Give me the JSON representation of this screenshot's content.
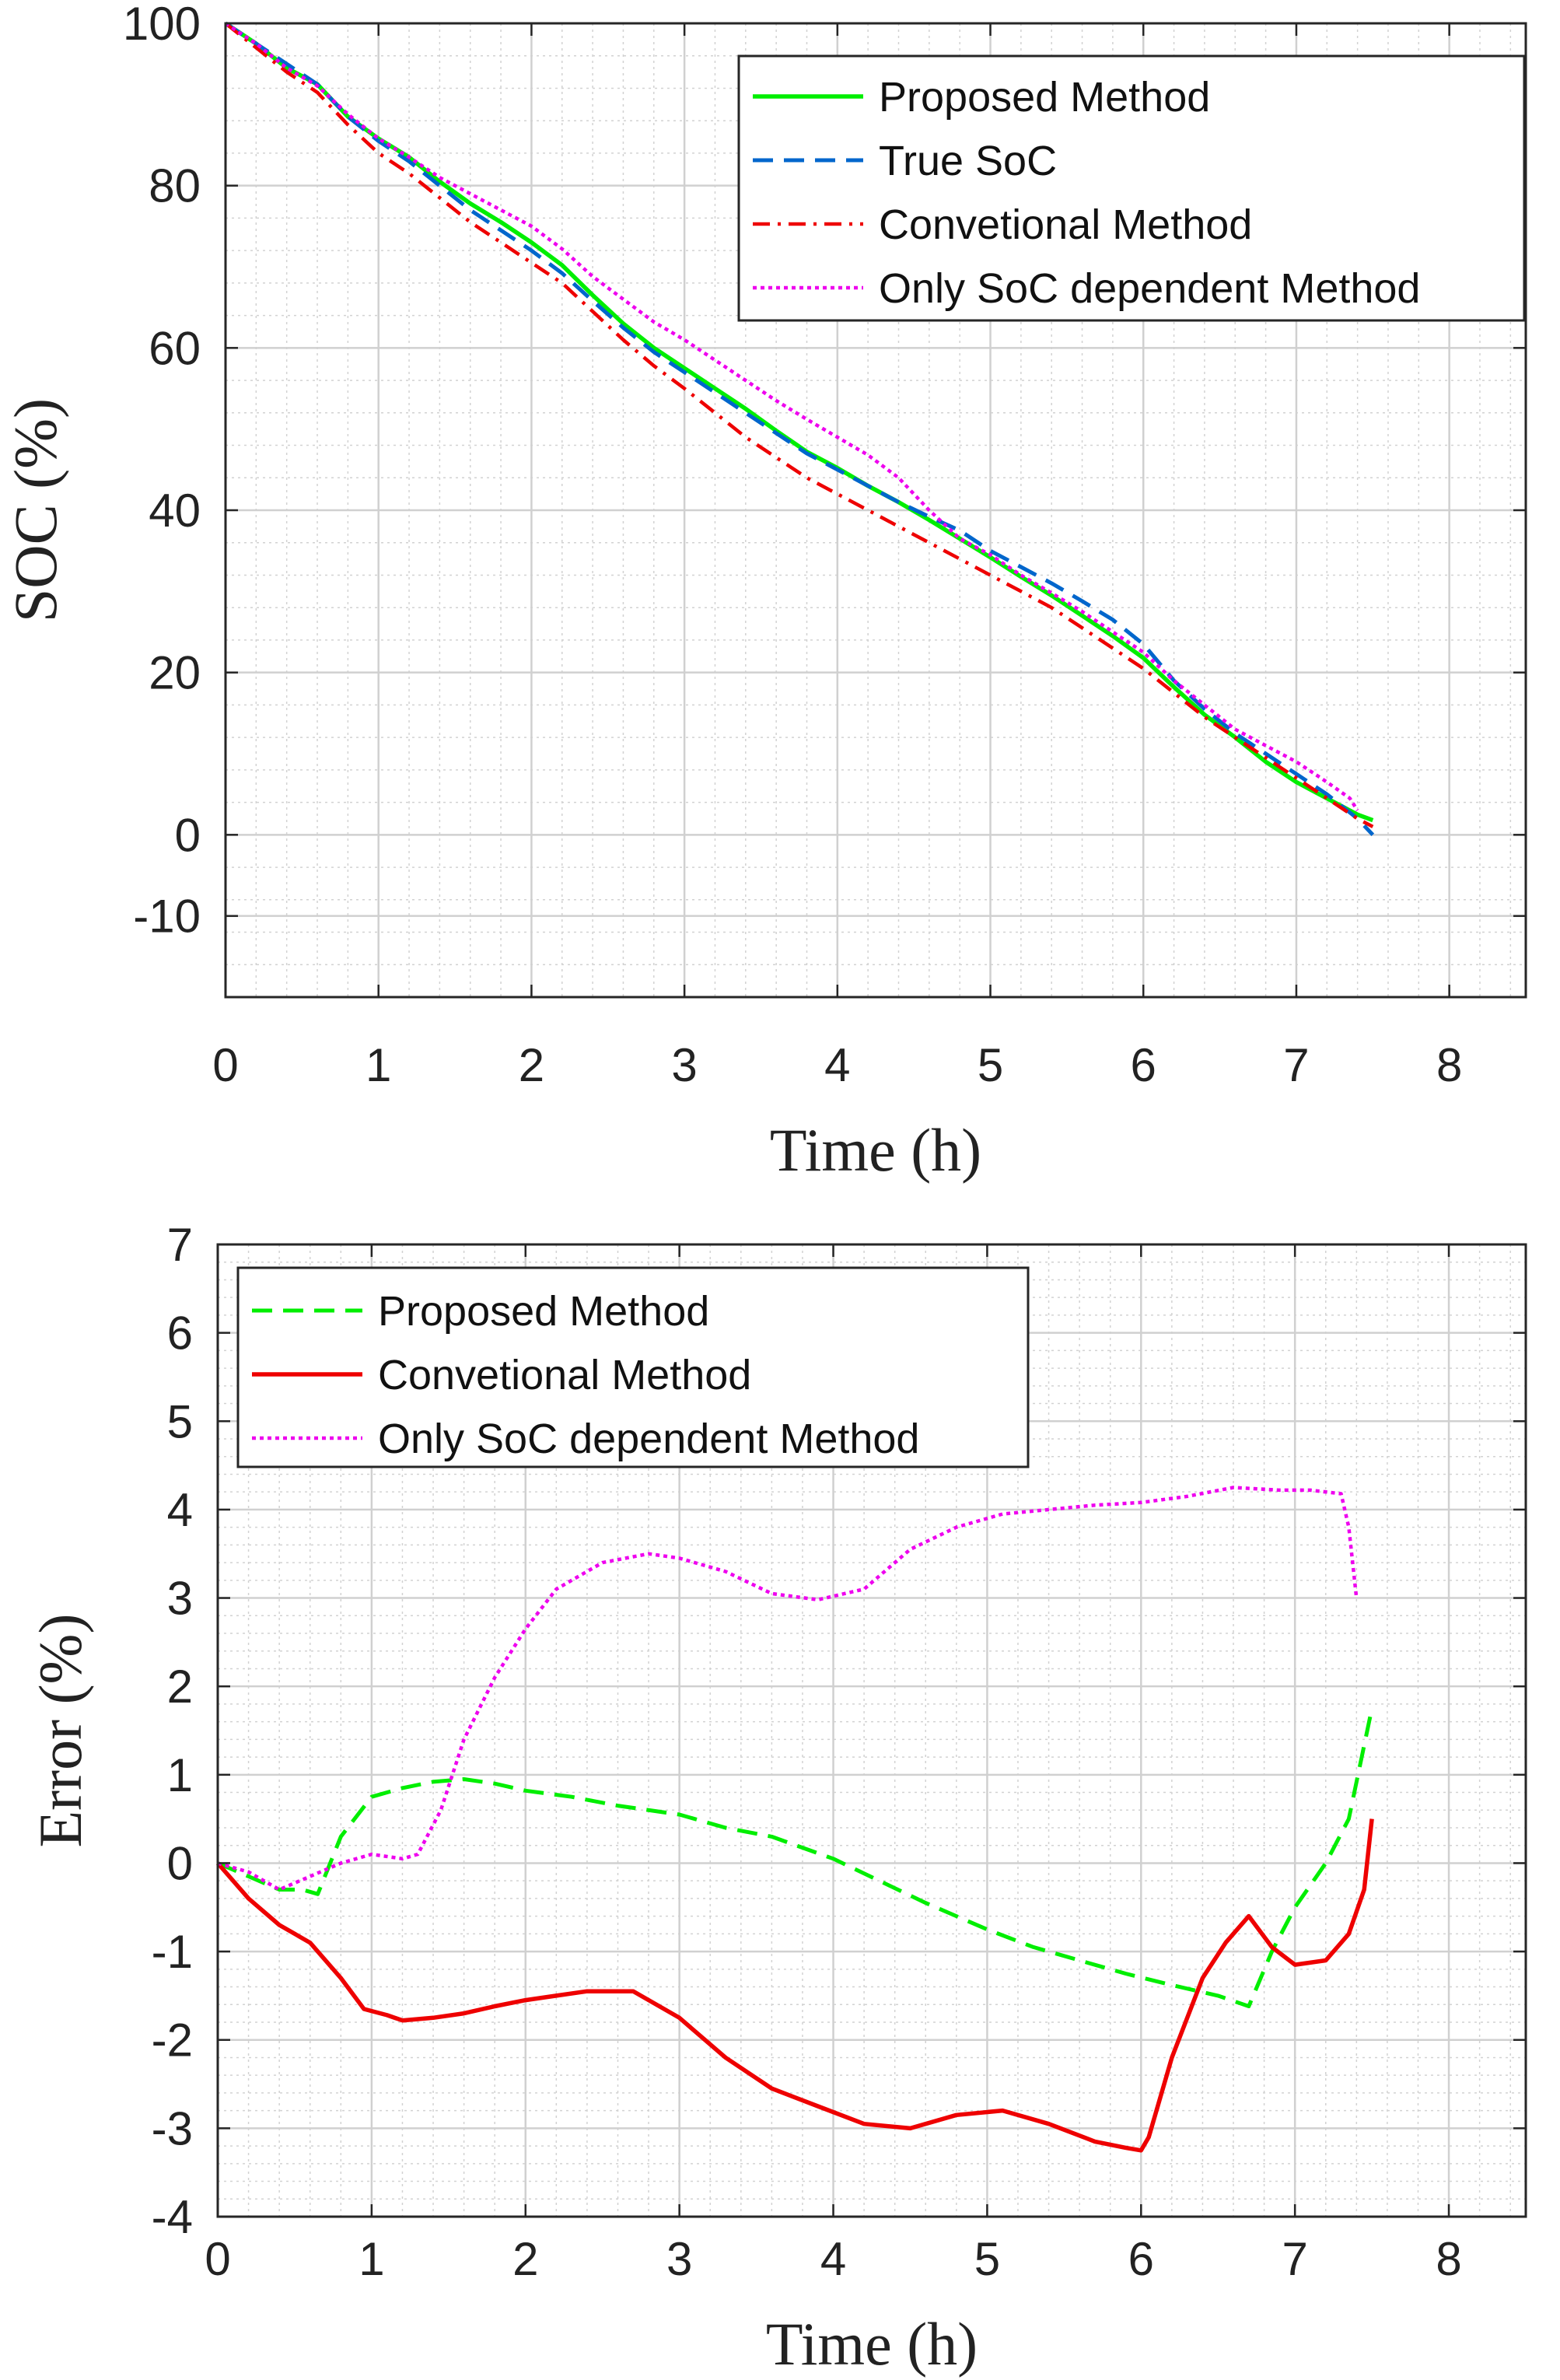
{
  "chart_data": [
    {
      "type": "line",
      "title": "",
      "xlabel": "Time (h)",
      "ylabel": "SOC (%)",
      "xlim": [
        0,
        8.5
      ],
      "ylim": [
        -20,
        100
      ],
      "xticks": [
        0,
        1,
        2,
        3,
        4,
        5,
        6,
        7,
        8
      ],
      "yticks": [
        -10,
        0,
        20,
        40,
        60,
        80,
        100
      ],
      "grid": true,
      "legend_position": "top-right",
      "series": [
        {
          "name": "Proposed Method",
          "color": "#00ee00",
          "dash": "solid",
          "x": [
            0,
            0.2,
            0.4,
            0.6,
            0.8,
            1.0,
            1.2,
            1.4,
            1.6,
            1.8,
            2.0,
            2.2,
            2.4,
            2.6,
            2.8,
            3.0,
            3.2,
            3.4,
            3.6,
            3.8,
            4.0,
            4.2,
            4.4,
            4.6,
            4.8,
            5.0,
            5.2,
            5.4,
            5.6,
            5.8,
            6.0,
            6.2,
            6.4,
            6.6,
            6.8,
            7.0,
            7.2,
            7.4,
            7.5
          ],
          "y": [
            100,
            97.5,
            94.5,
            92.5,
            88.5,
            85.8,
            83.5,
            80.5,
            77.8,
            75.5,
            73.0,
            70.2,
            66.5,
            63.0,
            60.0,
            57.5,
            55.0,
            52.5,
            49.8,
            47.2,
            45.2,
            43.0,
            41.0,
            38.8,
            36.5,
            34.2,
            31.8,
            29.5,
            27.0,
            24.5,
            21.8,
            18.2,
            14.8,
            12.0,
            9.0,
            6.5,
            4.5,
            2.5,
            1.8
          ]
        },
        {
          "name": "True SoC",
          "color": "#0066cc",
          "dash": "dashed",
          "x": [
            0,
            0.2,
            0.4,
            0.6,
            0.8,
            1.0,
            1.2,
            1.4,
            1.6,
            1.8,
            2.0,
            2.2,
            2.4,
            2.6,
            2.8,
            3.0,
            3.2,
            3.4,
            3.6,
            3.8,
            4.0,
            4.2,
            4.4,
            4.6,
            4.8,
            5.0,
            5.2,
            5.4,
            5.6,
            5.8,
            6.0,
            6.2,
            6.4,
            6.6,
            6.8,
            7.0,
            7.2,
            7.4,
            7.5
          ],
          "y": [
            100,
            97.5,
            95.0,
            92.5,
            88.5,
            85.5,
            83.0,
            80.0,
            77.0,
            74.5,
            72.0,
            69.2,
            65.8,
            62.5,
            59.5,
            57.0,
            54.5,
            52.0,
            49.5,
            47.0,
            45.0,
            43.0,
            41.0,
            39.2,
            37.5,
            35.0,
            33.0,
            31.0,
            28.8,
            26.5,
            23.5,
            19.0,
            15.5,
            12.5,
            10.0,
            7.5,
            5.0,
            2.0,
            0.0
          ]
        },
        {
          "name": "Convetional Method",
          "color": "#ee0000",
          "dash": "dashdot",
          "x": [
            0,
            0.2,
            0.4,
            0.6,
            0.8,
            1.0,
            1.2,
            1.4,
            1.6,
            1.8,
            2.0,
            2.2,
            2.4,
            2.6,
            2.8,
            3.0,
            3.2,
            3.4,
            3.6,
            3.8,
            4.0,
            4.2,
            4.4,
            4.6,
            4.8,
            5.0,
            5.2,
            5.4,
            5.6,
            5.8,
            6.0,
            6.2,
            6.4,
            6.6,
            6.8,
            7.0,
            7.2,
            7.4,
            7.5
          ],
          "y": [
            100,
            97.0,
            94.0,
            91.5,
            87.5,
            84.0,
            81.5,
            78.5,
            75.5,
            73.0,
            70.5,
            68.0,
            64.5,
            61.0,
            57.8,
            55.0,
            52.0,
            49.0,
            46.5,
            44.0,
            42.0,
            40.0,
            38.0,
            36.0,
            34.0,
            32.0,
            30.0,
            28.0,
            25.5,
            23.0,
            20.5,
            17.5,
            14.5,
            12.0,
            9.5,
            7.0,
            4.5,
            2.0,
            1.0
          ]
        },
        {
          "name": "Only SoC dependent Method",
          "color": "#ee00ee",
          "dash": "dotted",
          "x": [
            0,
            0.2,
            0.4,
            0.6,
            0.8,
            1.0,
            1.2,
            1.4,
            1.6,
            1.8,
            2.0,
            2.2,
            2.4,
            2.6,
            2.8,
            3.0,
            3.2,
            3.4,
            3.6,
            3.8,
            4.0,
            4.2,
            4.4,
            4.6,
            4.8,
            5.0,
            5.2,
            5.4,
            5.6,
            5.8,
            6.0,
            6.2,
            6.4,
            6.6,
            6.8,
            7.0,
            7.2,
            7.35,
            7.4
          ],
          "y": [
            100,
            97.5,
            94.5,
            92.3,
            88.8,
            85.8,
            83.5,
            81.0,
            79.0,
            77.0,
            75.0,
            72.2,
            68.8,
            66.0,
            63.2,
            61.0,
            58.5,
            56.0,
            53.5,
            51.2,
            49.0,
            46.8,
            44.0,
            40.0,
            36.5,
            34.5,
            32.0,
            29.8,
            27.5,
            25.0,
            22.5,
            19.0,
            16.0,
            13.0,
            11.0,
            9.0,
            6.5,
            4.5,
            3.0
          ]
        }
      ]
    },
    {
      "type": "line",
      "title": "",
      "xlabel": "Time (h)",
      "ylabel": "Error (%)",
      "xlim": [
        0,
        8.5
      ],
      "ylim": [
        -4,
        7
      ],
      "xticks": [
        0,
        1,
        2,
        3,
        4,
        5,
        6,
        7,
        8
      ],
      "yticks": [
        -4,
        -3,
        -2,
        -1,
        0,
        1,
        2,
        3,
        4,
        5,
        6,
        7
      ],
      "grid": true,
      "legend_position": "top-left",
      "series": [
        {
          "name": "Proposed Method",
          "color": "#00ee00",
          "dash": "dashed",
          "x": [
            0,
            0.2,
            0.4,
            0.55,
            0.65,
            0.8,
            1.0,
            1.2,
            1.4,
            1.6,
            1.8,
            2.0,
            2.3,
            2.6,
            3.0,
            3.3,
            3.6,
            4.0,
            4.3,
            4.6,
            5.0,
            5.3,
            5.6,
            5.9,
            6.2,
            6.5,
            6.7,
            6.85,
            7.0,
            7.2,
            7.35,
            7.5
          ],
          "y": [
            0,
            -0.15,
            -0.3,
            -0.3,
            -0.35,
            0.3,
            0.75,
            0.85,
            0.92,
            0.95,
            0.9,
            0.82,
            0.75,
            0.65,
            0.55,
            0.4,
            0.3,
            0.05,
            -0.2,
            -0.45,
            -0.75,
            -0.95,
            -1.1,
            -1.25,
            -1.38,
            -1.5,
            -1.62,
            -1.0,
            -0.5,
            0.0,
            0.5,
            1.75
          ]
        },
        {
          "name": "Convetional Method",
          "color": "#ee0000",
          "dash": "solid",
          "x": [
            0,
            0.2,
            0.4,
            0.6,
            0.8,
            0.95,
            1.1,
            1.2,
            1.4,
            1.6,
            1.8,
            2.0,
            2.2,
            2.4,
            2.7,
            3.0,
            3.3,
            3.6,
            3.9,
            4.2,
            4.5,
            4.8,
            5.1,
            5.4,
            5.7,
            5.9,
            6.0,
            6.05,
            6.2,
            6.4,
            6.55,
            6.7,
            6.85,
            7.0,
            7.2,
            7.35,
            7.45,
            7.5
          ],
          "y": [
            0,
            -0.4,
            -0.7,
            -0.9,
            -1.3,
            -1.65,
            -1.72,
            -1.78,
            -1.75,
            -1.7,
            -1.62,
            -1.55,
            -1.5,
            -1.45,
            -1.45,
            -1.75,
            -2.2,
            -2.55,
            -2.75,
            -2.95,
            -3.0,
            -2.85,
            -2.8,
            -2.95,
            -3.15,
            -3.22,
            -3.25,
            -3.1,
            -2.2,
            -1.3,
            -0.9,
            -0.6,
            -0.95,
            -1.15,
            -1.1,
            -0.8,
            -0.3,
            0.5
          ]
        },
        {
          "name": "Only SoC dependent Method",
          "color": "#ee00ee",
          "dash": "dotted",
          "x": [
            0,
            0.2,
            0.4,
            0.6,
            0.8,
            1.0,
            1.2,
            1.3,
            1.45,
            1.6,
            1.8,
            2.0,
            2.2,
            2.5,
            2.8,
            3.0,
            3.3,
            3.6,
            3.9,
            4.2,
            4.5,
            4.8,
            5.1,
            5.4,
            5.7,
            6.0,
            6.3,
            6.6,
            6.9,
            7.1,
            7.3,
            7.35,
            7.4
          ],
          "y": [
            0,
            -0.1,
            -0.3,
            -0.15,
            0.0,
            0.1,
            0.05,
            0.1,
            0.6,
            1.4,
            2.1,
            2.65,
            3.1,
            3.4,
            3.5,
            3.45,
            3.3,
            3.05,
            2.98,
            3.1,
            3.55,
            3.8,
            3.95,
            4.0,
            4.05,
            4.08,
            4.15,
            4.25,
            4.22,
            4.22,
            4.18,
            3.8,
            3.0
          ]
        }
      ]
    }
  ]
}
